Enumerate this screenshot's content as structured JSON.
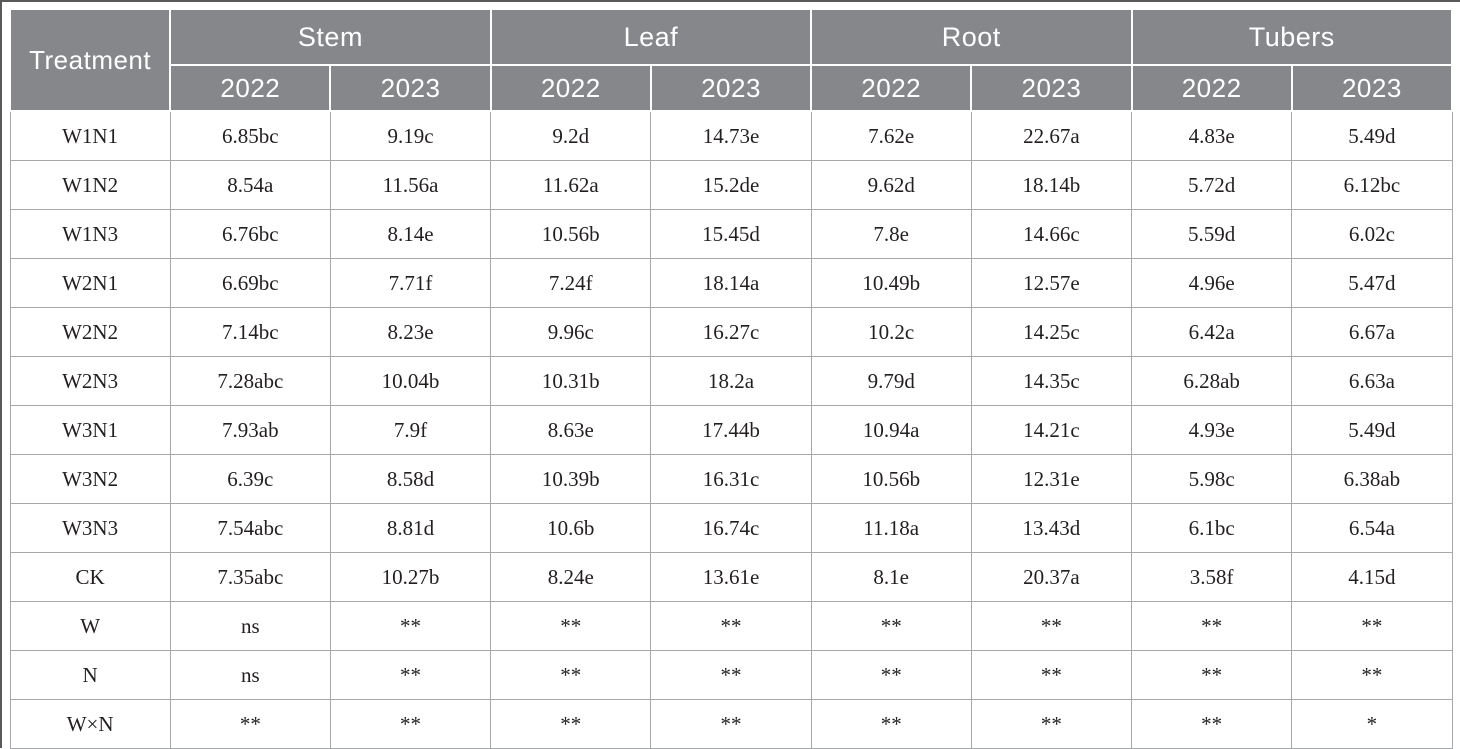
{
  "table": {
    "corner_header": "Treatment",
    "groups": [
      {
        "label": "Stem"
      },
      {
        "label": "Leaf"
      },
      {
        "label": "Root"
      },
      {
        "label": "Tubers"
      }
    ],
    "year_headers": [
      "2022",
      "2023",
      "2022",
      "2023",
      "2022",
      "2023",
      "2022",
      "2023"
    ],
    "rows": [
      {
        "treatment": "W1N1",
        "values": [
          "6.85bc",
          "9.19c",
          "9.2d",
          "14.73e",
          "7.62e",
          "22.67a",
          "4.83e",
          "5.49d"
        ]
      },
      {
        "treatment": "W1N2",
        "values": [
          "8.54a",
          "11.56a",
          "11.62a",
          "15.2de",
          "9.62d",
          "18.14b",
          "5.72d",
          "6.12bc"
        ]
      },
      {
        "treatment": "W1N3",
        "values": [
          "6.76bc",
          "8.14e",
          "10.56b",
          "15.45d",
          "7.8e",
          "14.66c",
          "5.59d",
          "6.02c"
        ]
      },
      {
        "treatment": "W2N1",
        "values": [
          "6.69bc",
          "7.71f",
          "7.24f",
          "18.14a",
          "10.49b",
          "12.57e",
          "4.96e",
          "5.47d"
        ]
      },
      {
        "treatment": "W2N2",
        "values": [
          "7.14bc",
          "8.23e",
          "9.96c",
          "16.27c",
          "10.2c",
          "14.25c",
          "6.42a",
          "6.67a"
        ]
      },
      {
        "treatment": "W2N3",
        "values": [
          "7.28abc",
          "10.04b",
          "10.31b",
          "18.2a",
          "9.79d",
          "14.35c",
          "6.28ab",
          "6.63a"
        ]
      },
      {
        "treatment": "W3N1",
        "values": [
          "7.93ab",
          "7.9f",
          "8.63e",
          "17.44b",
          "10.94a",
          "14.21c",
          "4.93e",
          "5.49d"
        ]
      },
      {
        "treatment": "W3N2",
        "values": [
          "6.39c",
          "8.58d",
          "10.39b",
          "16.31c",
          "10.56b",
          "12.31e",
          "5.98c",
          "6.38ab"
        ]
      },
      {
        "treatment": "W3N3",
        "values": [
          "7.54abc",
          "8.81d",
          "10.6b",
          "16.74c",
          "11.18a",
          "13.43d",
          "6.1bc",
          "6.54a"
        ]
      },
      {
        "treatment": "CK",
        "values": [
          "7.35abc",
          "10.27b",
          "8.24e",
          "13.61e",
          "8.1e",
          "20.37a",
          "3.58f",
          "4.15d"
        ]
      },
      {
        "treatment": "W",
        "values": [
          "ns",
          "**",
          "**",
          "**",
          "**",
          "**",
          "**",
          "**"
        ]
      },
      {
        "treatment": "N",
        "values": [
          "ns",
          "**",
          "**",
          "**",
          "**",
          "**",
          "**",
          "**"
        ]
      },
      {
        "treatment": "W×N",
        "values": [
          "**",
          "**",
          "**",
          "**",
          "**",
          "**",
          "**",
          "*"
        ]
      }
    ],
    "colors": {
      "header_bg": "#85878a",
      "header_text": "#ffffff",
      "body_text": "#231f20",
      "grid_line": "#a6a8ab",
      "outer_rule": "#58595b"
    }
  }
}
